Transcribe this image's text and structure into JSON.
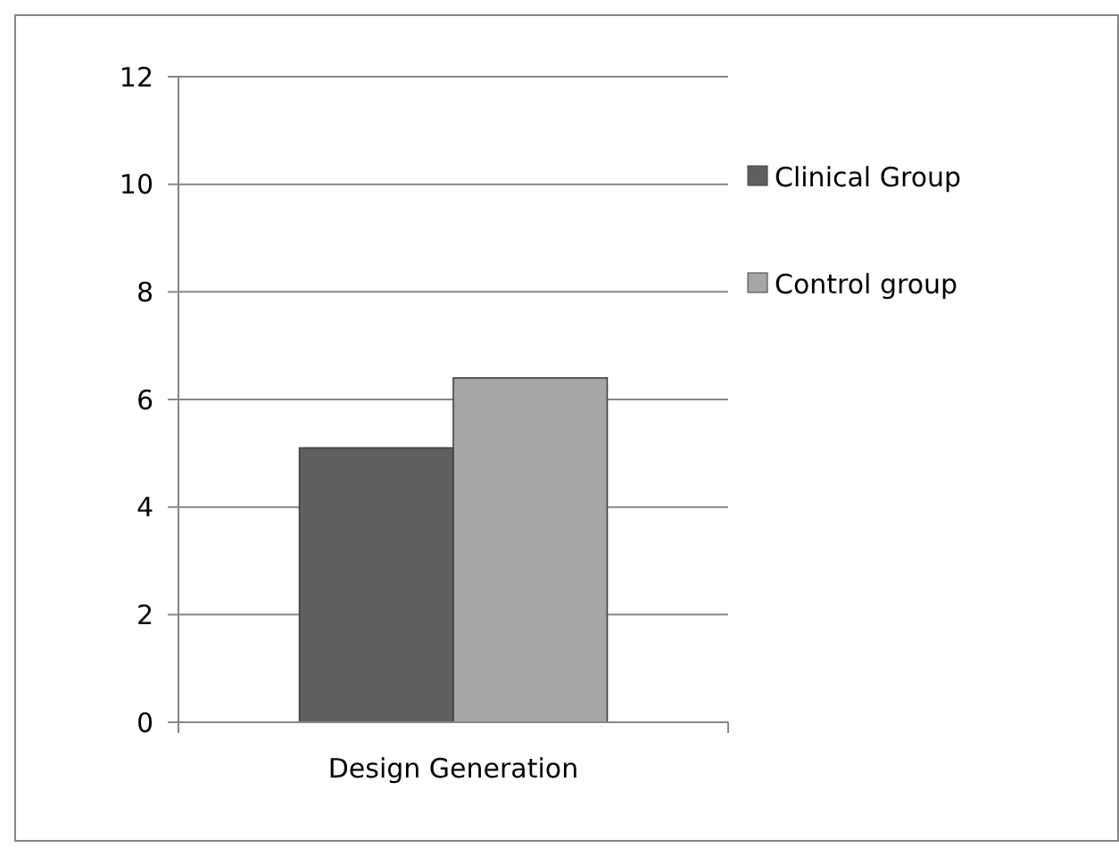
{
  "chart_data": {
    "type": "bar",
    "categories": [
      "Design Generation"
    ],
    "series": [
      {
        "name": "Clinical Group",
        "color": "#5f5f5f",
        "values": [
          5.1
        ]
      },
      {
        "name": "Control group",
        "color": "#a6a6a6",
        "values": [
          6.4
        ]
      }
    ],
    "ylim": [
      0,
      12
    ],
    "yticks": [
      0,
      2,
      4,
      6,
      8,
      10,
      12
    ],
    "grid": "y",
    "legend": "right"
  }
}
